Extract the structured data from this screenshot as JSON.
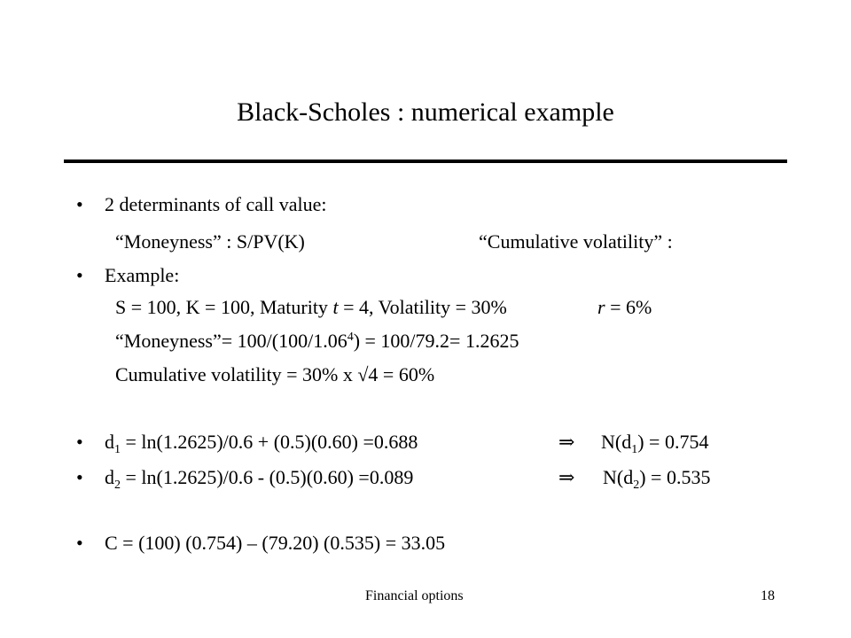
{
  "title": "Black-Scholes : numerical example",
  "bullets": {
    "b1": "2 determinants of call value:",
    "b2": "Example:",
    "b3_prefix": "d",
    "b3_sub": "1",
    "b3_rest": " = ln(1.2625)/0.6 + (0.5)(0.60) =0.688",
    "b3_result_prefix": "N(d",
    "b3_result_sub": "1",
    "b3_result_suffix": ") = 0.754",
    "b4_prefix": "d",
    "b4_sub": "2",
    "b4_rest": " = ln(1.2625)/0.6 - (0.5)(0.60) =0.089",
    "b4_result_prefix": "N(d",
    "b4_result_sub": "2",
    "b4_result_suffix": ") = 0.535",
    "b5": "C = (100) (0.754) – (79.20) (0.535) = 33.05"
  },
  "sublines": {
    "moneyness_def": "“Moneyness” : S/PV(K)",
    "cumvol_def": "“Cumulative volatility” :",
    "example_params_a": "S = 100, K = 100, Maturity ",
    "example_params_t": "t",
    "example_params_b": " = 4, Volatility = 30%",
    "example_params_r": "r",
    "example_params_c": " = 6%",
    "moneyness_calc_a": "“Moneyness”= 100/(100/1.06",
    "moneyness_calc_sup": "4",
    "moneyness_calc_b": ") = 100/79.2= 1.2625",
    "cumvol_calc_a": "Cumulative volatility = 30% x ",
    "cumvol_calc_root": "√",
    "cumvol_calc_b": "4 = 60%"
  },
  "implies_symbol": "⇒",
  "bullet_symbol": "•",
  "footer": {
    "label": "Financial options",
    "page": "18"
  }
}
